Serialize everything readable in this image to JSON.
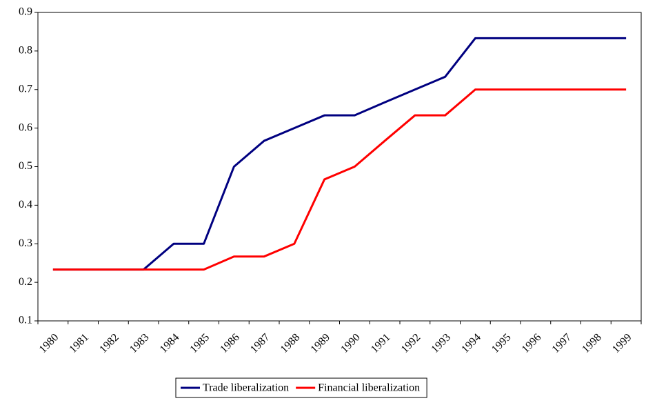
{
  "chart_data": {
    "type": "line",
    "categories": [
      "1980",
      "1981",
      "1982",
      "1983",
      "1984",
      "1985",
      "1986",
      "1987",
      "1988",
      "1989",
      "1990",
      "1991",
      "1992",
      "1993",
      "1994",
      "1995",
      "1996",
      "1997",
      "1998",
      "1999"
    ],
    "series": [
      {
        "name": "Trade liberalization",
        "color": "#000080",
        "values": [
          0.233,
          0.233,
          0.233,
          0.233,
          0.3,
          0.3,
          0.5,
          0.567,
          0.6,
          0.633,
          0.633,
          0.667,
          0.7,
          0.733,
          0.833,
          0.833,
          0.833,
          0.833,
          0.833,
          0.833
        ]
      },
      {
        "name": "Financial liberalization",
        "color": "#ff0000",
        "values": [
          0.233,
          0.233,
          0.233,
          0.233,
          0.233,
          0.233,
          0.267,
          0.267,
          0.3,
          0.467,
          0.5,
          0.567,
          0.633,
          0.633,
          0.7,
          0.7,
          0.7,
          0.7,
          0.7,
          0.7
        ]
      }
    ],
    "ylim": [
      0.1,
      0.9
    ],
    "yticks": [
      0.1,
      0.2,
      0.3,
      0.4,
      0.5,
      0.6,
      0.7,
      0.8,
      0.9
    ],
    "grid": false,
    "legend": "bottom"
  }
}
